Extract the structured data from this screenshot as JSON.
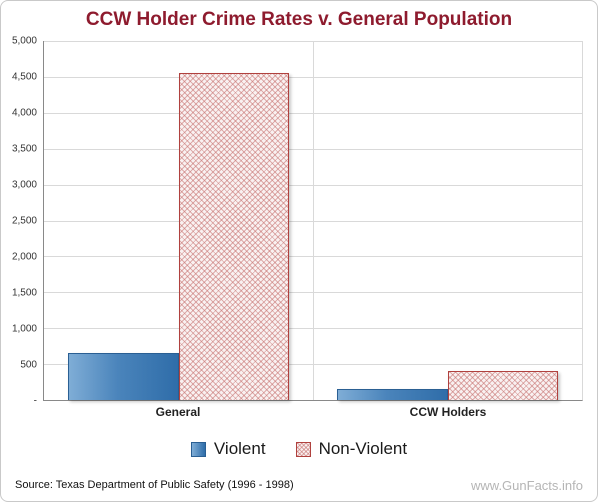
{
  "title": "CCW Holder Crime Rates v. General Population",
  "source": "Source:  Texas Department of Public Safety (1996 - 1998)",
  "watermark": "www.GunFacts.info",
  "colors": {
    "title": "#8e1b2e",
    "violent_bar": "#3a75b0",
    "nonviolent_border": "#b0413e",
    "gridline": "#d9d9d9",
    "watermark": "#b5b5b5"
  },
  "chart_data": {
    "type": "bar",
    "categories": [
      "General",
      "CCW Holders"
    ],
    "series": [
      {
        "name": "Violent",
        "values": [
          650,
          150
        ],
        "style": "solid-blue"
      },
      {
        "name": "Non-Violent",
        "values": [
          4550,
          400
        ],
        "style": "red-crosshatch"
      }
    ],
    "title": "CCW Holder Crime Rates v. General Population",
    "xlabel": "",
    "ylabel": "",
    "ylim": [
      0,
      5000
    ],
    "ytick_interval": 500,
    "ytick_labels": [
      "5,000",
      "4,500",
      "4,000",
      "3,500",
      "3,000",
      "2,500",
      "2,000",
      "1,500",
      "1,000",
      "500",
      "-"
    ],
    "grid": true,
    "legend_position": "bottom"
  }
}
